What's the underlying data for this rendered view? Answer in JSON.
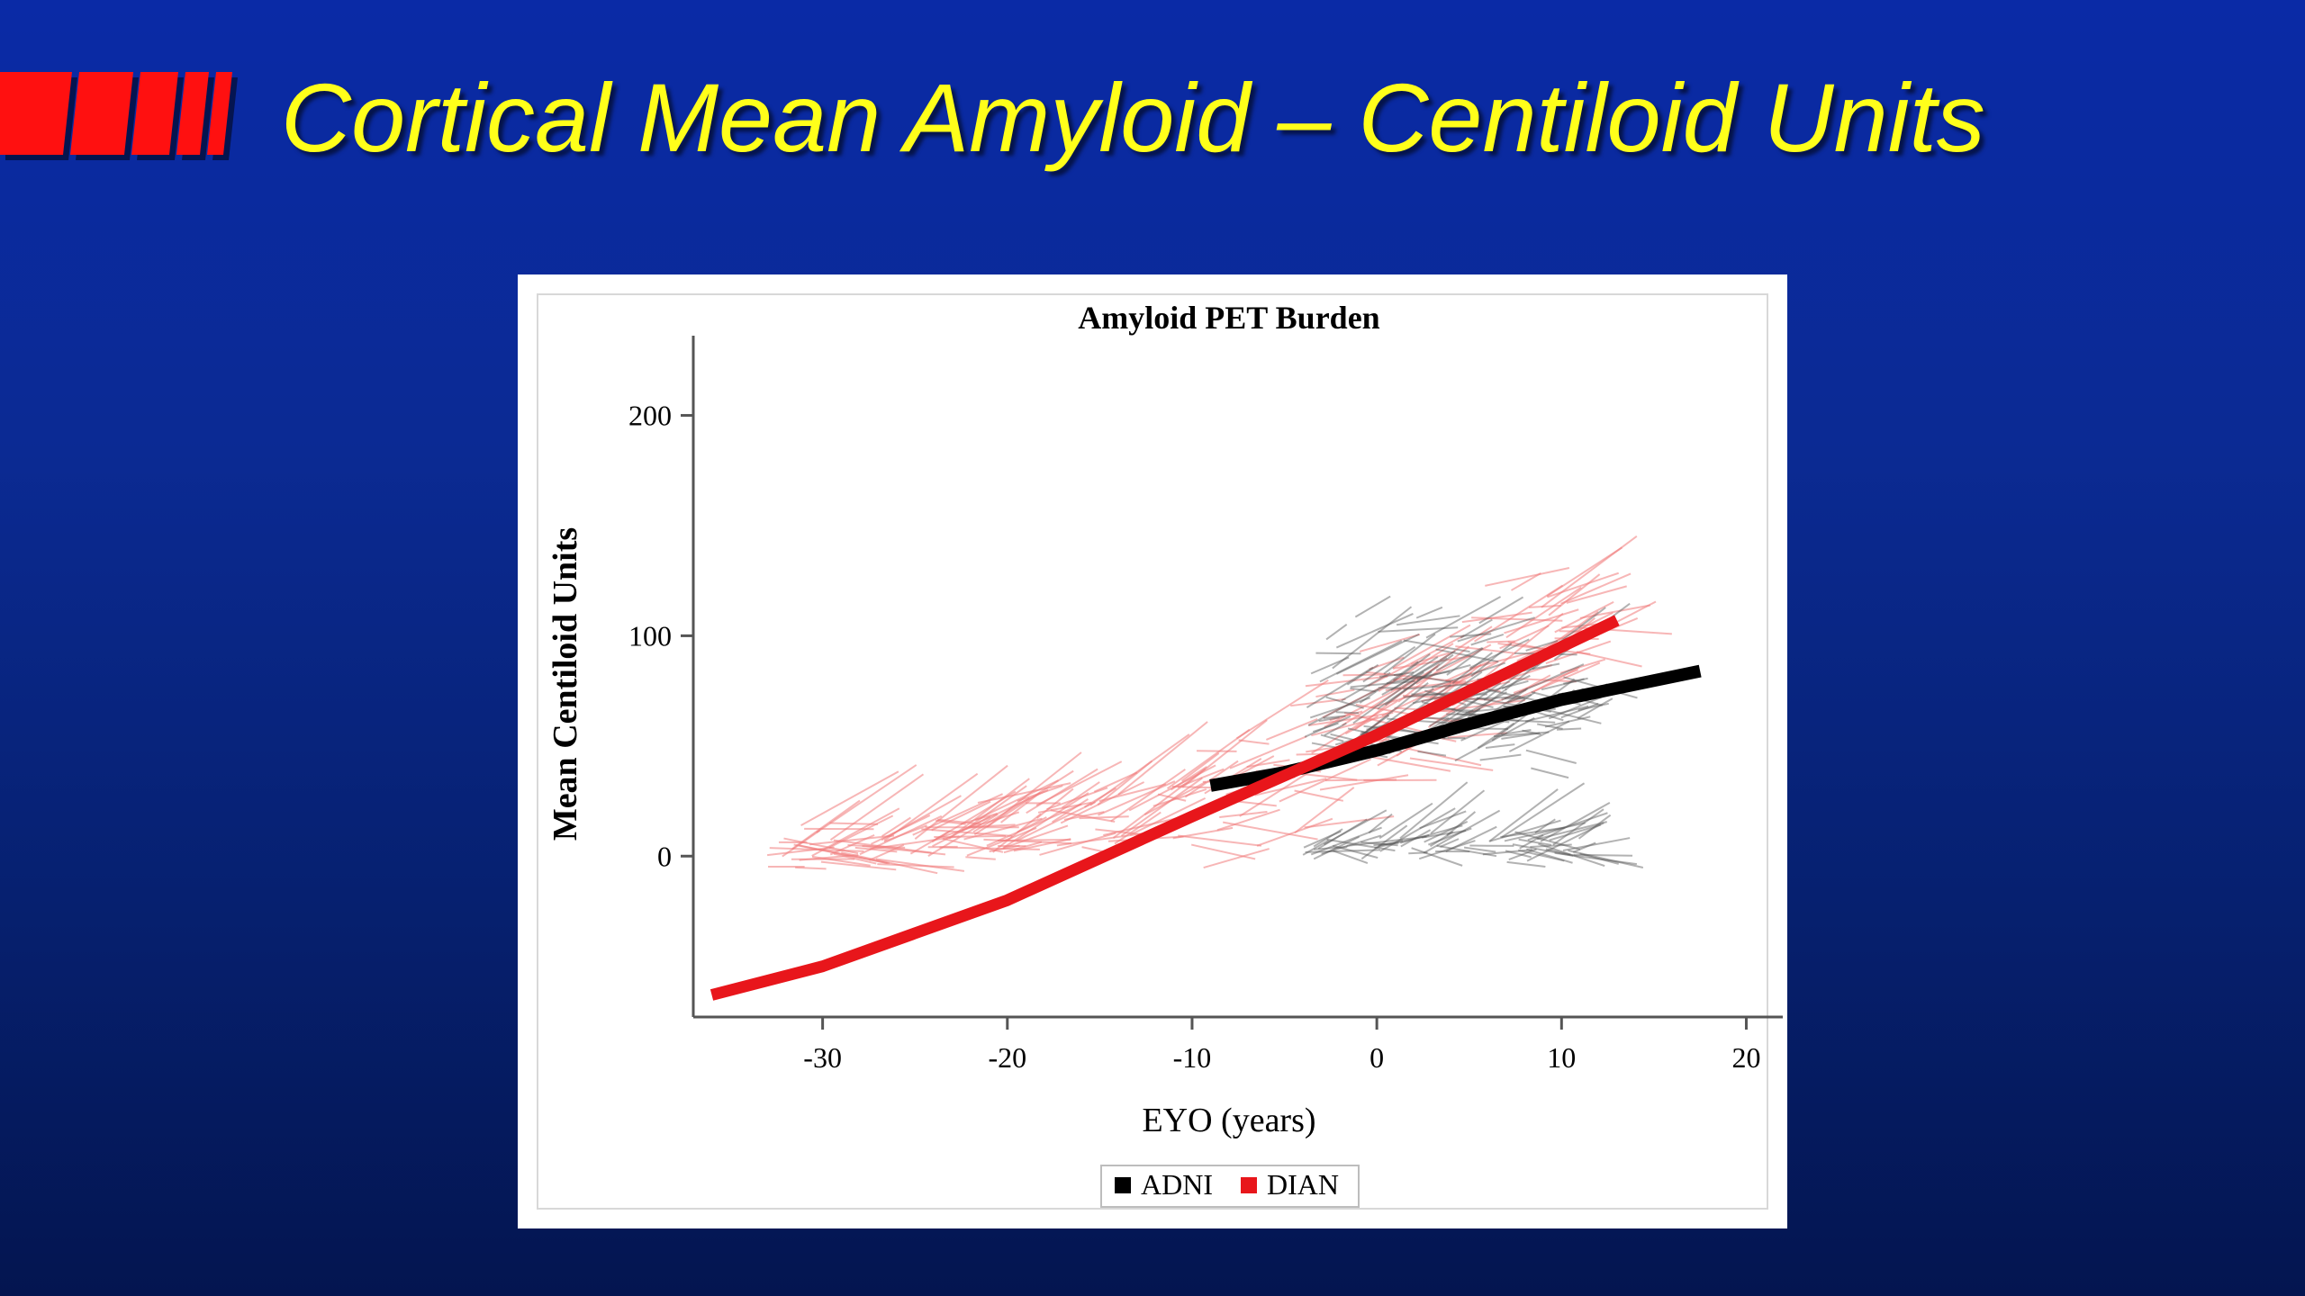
{
  "slide": {
    "title": "Cortical Mean Amyloid – Centiloid Units",
    "accent_color": "#ff1010",
    "title_color": "#ffff1a",
    "background_color": "#0a2a9a"
  },
  "chart_data": {
    "type": "line",
    "title": "Amyloid PET Burden",
    "xlabel": "EYO (years)",
    "ylabel": "Mean Centiloid Units",
    "xlim": [
      -37,
      21
    ],
    "ylim": [
      -73,
      228
    ],
    "x_ticks": [
      -30,
      -20,
      -10,
      0,
      10,
      20
    ],
    "x_tick_labels": [
      "-30",
      "-20",
      "-10",
      "0",
      "10",
      "20"
    ],
    "y_ticks": [
      0,
      100,
      200
    ],
    "y_tick_labels": [
      "0",
      "100",
      "200"
    ],
    "grid": false,
    "legend": {
      "position": "bottom-center",
      "entries": [
        "ADNI",
        "DIAN"
      ]
    },
    "series": [
      {
        "name": "ADNI",
        "color": "#000000",
        "x": [
          -9,
          -5,
          0,
          5,
          10,
          17.5
        ],
        "y": [
          32,
          38,
          48,
          60,
          71,
          84
        ]
      },
      {
        "name": "DIAN",
        "color": "#e8161b",
        "x": [
          -36,
          -30,
          -20,
          -10,
          0,
          5,
          13
        ],
        "y": [
          -63,
          -50,
          -20,
          18,
          55,
          75,
          107
        ]
      }
    ]
  }
}
